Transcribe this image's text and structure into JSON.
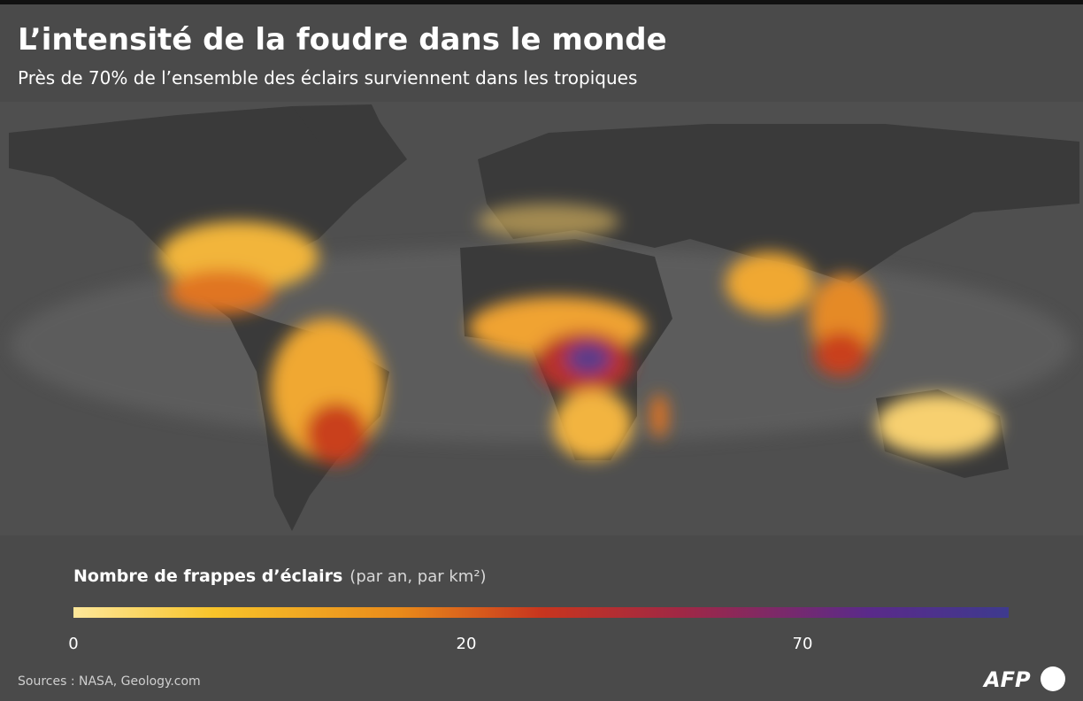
{
  "header": {
    "title": "L’intensité de la foudre dans le monde",
    "subtitle": "Près de 70% de l’ensemble des éclairs surviennent dans les tropiques"
  },
  "legend": {
    "title": "Nombre de frappes d’éclairs",
    "unit": "(par an, par km²)",
    "ticks": [
      "0",
      "20",
      "70"
    ]
  },
  "footer": {
    "source": "Sources : NASA, Geology.com",
    "logo": "AFP"
  }
}
